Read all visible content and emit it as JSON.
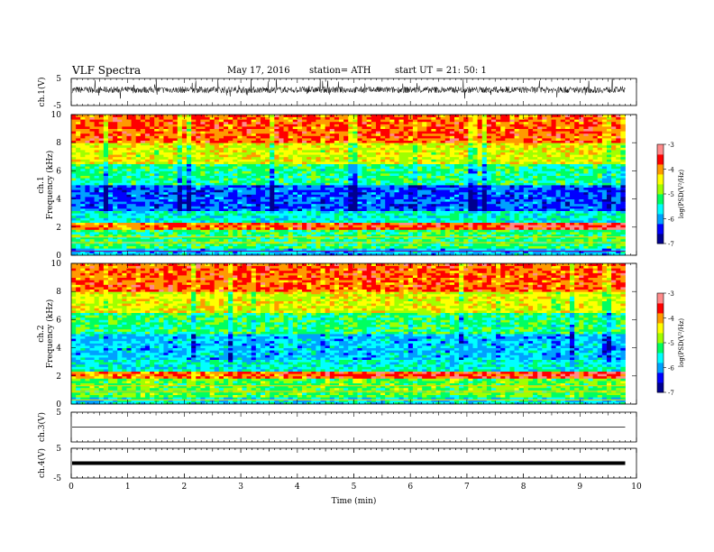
{
  "header": {
    "title": "VLF  Spectra",
    "date": "May 17, 2016",
    "station": "station= ATH",
    "start": "start  UT =    21: 50: 1"
  },
  "chart_data": [
    {
      "type": "line",
      "panel": "ch1-waveform",
      "ylabel": "ch.1(V)",
      "yticks": [
        "5",
        "-5"
      ],
      "ylim": [
        -5,
        5
      ],
      "description": "dense noise waveform centred slightly above 0 V with spikes"
    },
    {
      "type": "heatmap",
      "panel": "ch1-spectrogram",
      "ylabel_top": "ch.1",
      "ylabel": "Frequency  (kHz)",
      "ylim": [
        0,
        10
      ],
      "yticks": [
        "0",
        "2",
        "4",
        "6",
        "8",
        "10"
      ],
      "colorbar": {
        "label": "log(PSD(V²/Hz)",
        "ticks": [
          "-3",
          "-4",
          "-5",
          "-6",
          "-7"
        ],
        "range": [
          -7,
          -3
        ]
      },
      "bands": [
        {
          "f": [
            0,
            0.5
          ],
          "logpsd": -5.8
        },
        {
          "f": [
            0.5,
            1.8
          ],
          "logpsd": -5.2
        },
        {
          "f": [
            1.8,
            2.4
          ],
          "logpsd": -4.0
        },
        {
          "f": [
            2.4,
            3.2
          ],
          "logpsd": -5.5
        },
        {
          "f": [
            3.2,
            5.0
          ],
          "logpsd": -6.2
        },
        {
          "f": [
            5.0,
            6.5
          ],
          "logpsd": -5.3
        },
        {
          "f": [
            6.5,
            8.0
          ],
          "logpsd": -4.5
        },
        {
          "f": [
            8.0,
            10
          ],
          "logpsd": -3.8
        }
      ]
    },
    {
      "type": "heatmap",
      "panel": "ch2-spectrogram",
      "ylabel_top": "ch.2",
      "ylabel": "Frequency  (kHz)",
      "ylim": [
        0,
        10
      ],
      "yticks": [
        "0",
        "2",
        "4",
        "6",
        "8",
        "10"
      ],
      "colorbar": {
        "label": "log(PSD(V²/Hz)",
        "ticks": [
          "-3",
          "-4",
          "-5",
          "-6",
          "-7"
        ],
        "range": [
          -7,
          -3
        ]
      },
      "bands": [
        {
          "f": [
            0,
            0.5
          ],
          "logpsd": -5.6
        },
        {
          "f": [
            0.5,
            1.8
          ],
          "logpsd": -5.0
        },
        {
          "f": [
            1.8,
            2.4
          ],
          "logpsd": -4.0
        },
        {
          "f": [
            2.4,
            3.2
          ],
          "logpsd": -5.5
        },
        {
          "f": [
            3.2,
            5.0
          ],
          "logpsd": -5.8
        },
        {
          "f": [
            5.0,
            6.5
          ],
          "logpsd": -5.2
        },
        {
          "f": [
            6.5,
            8.0
          ],
          "logpsd": -4.5
        },
        {
          "f": [
            8.0,
            10
          ],
          "logpsd": -3.8
        }
      ]
    },
    {
      "type": "line",
      "panel": "ch3-waveform",
      "ylabel": "ch.3(V)",
      "yticks": [
        "5"
      ],
      "ylim": [
        -5,
        5
      ],
      "description": "flat trace near 0 V"
    },
    {
      "type": "line",
      "panel": "ch4-waveform",
      "ylabel": "ch.4(V)",
      "yticks": [
        "5",
        "-5"
      ],
      "ylim": [
        -5,
        5
      ],
      "description": "thick flat trace near 0 V"
    }
  ],
  "x_axis": {
    "label": "Time  (min)",
    "ticks": [
      "0",
      "1",
      "2",
      "3",
      "4",
      "5",
      "6",
      "7",
      "8",
      "9",
      "10"
    ],
    "xlim": [
      0,
      10
    ],
    "data_end": 9.8
  },
  "colors": {
    "colormap": [
      "#00008f",
      "#0000ff",
      "#00a0ff",
      "#00ffff",
      "#00ff60",
      "#a0ff00",
      "#ffff00",
      "#ff9a00",
      "#ff0000",
      "#ff8a8a"
    ],
    "background": "#ffffff",
    "axis": "#000000"
  }
}
